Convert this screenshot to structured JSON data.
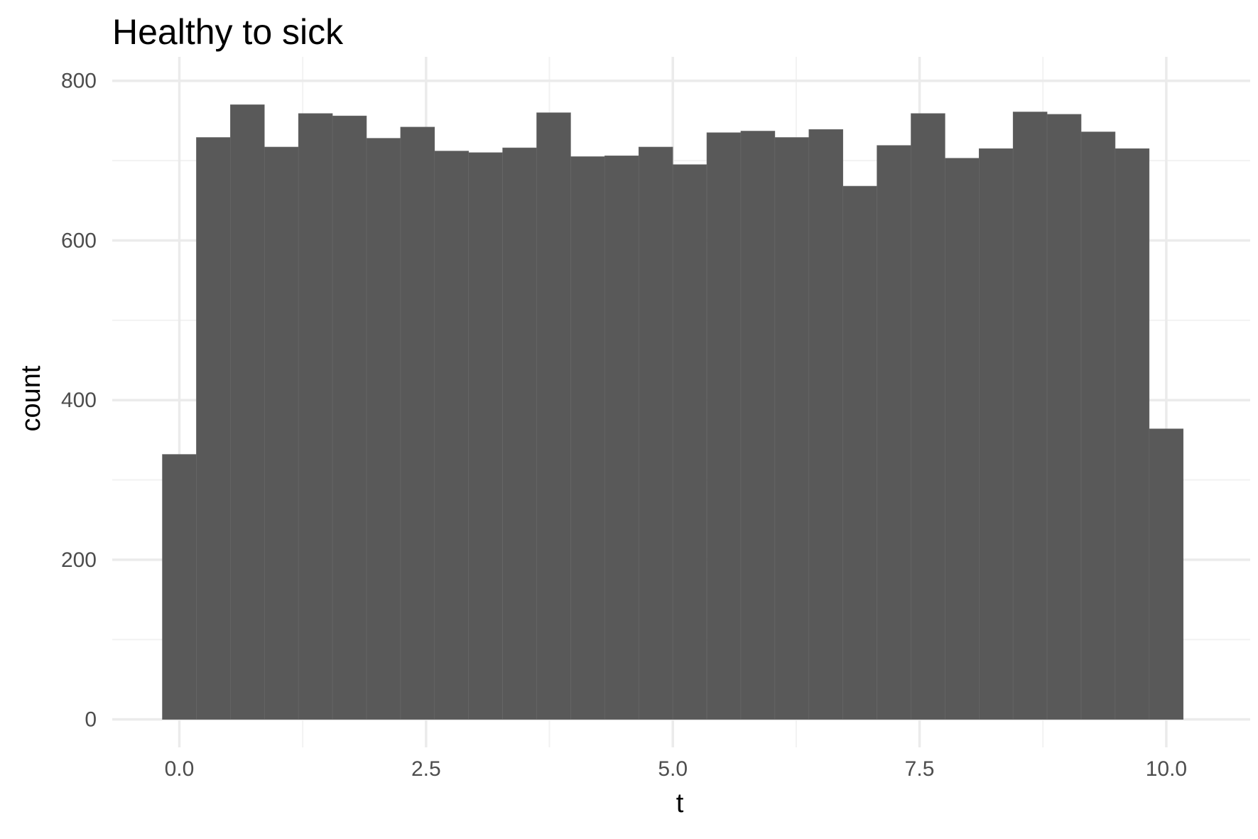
{
  "chart_data": {
    "type": "bar",
    "title": "Healthy to sick",
    "xlabel": "t",
    "ylabel": "count",
    "xlim": [
      -0.68,
      10.85
    ],
    "ylim": [
      -35,
      830
    ],
    "x_ticks": [
      0.0,
      2.5,
      5.0,
      7.5,
      10.0
    ],
    "x_tick_labels": [
      "0.0",
      "2.5",
      "5.0",
      "7.5",
      "10.0"
    ],
    "y_ticks": [
      0,
      200,
      400,
      600,
      800
    ],
    "y_tick_labels": [
      "0",
      "200",
      "400",
      "600",
      "800"
    ],
    "grid": true,
    "bar_color": "#595959",
    "bin_width": 0.3448,
    "bins_start": -0.1724,
    "values": [
      332,
      729,
      770,
      717,
      759,
      756,
      728,
      742,
      712,
      710,
      716,
      760,
      705,
      706,
      717,
      695,
      735,
      737,
      729,
      739,
      668,
      719,
      759,
      703,
      715,
      761,
      758,
      736,
      715,
      364
    ]
  }
}
